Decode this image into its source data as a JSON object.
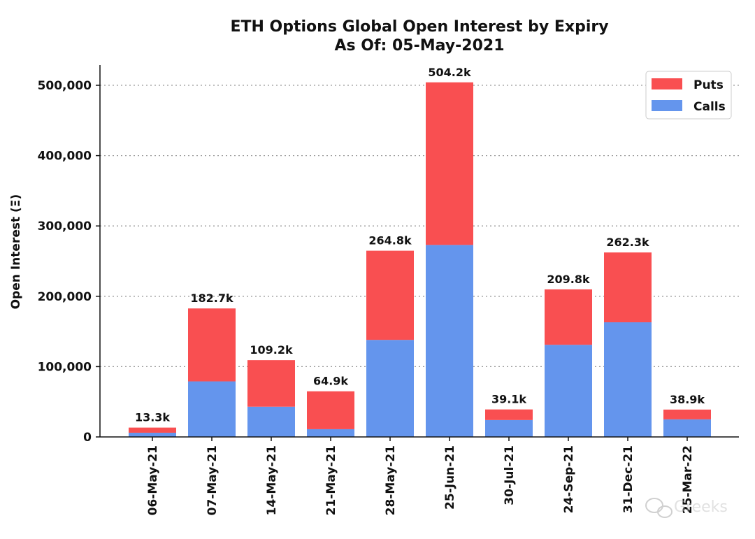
{
  "chart_data": {
    "type": "bar",
    "stacked": true,
    "title": "ETH Options Global Open Interest by Expiry",
    "subtitle": "As Of: 05-May-2021",
    "xlabel": "",
    "ylabel": "Open Interest (Ξ)",
    "ylim": [
      0,
      530000
    ],
    "yticks": [
      0,
      100000,
      200000,
      300000,
      400000,
      500000
    ],
    "ytick_labels": [
      "0",
      "100,000",
      "200,000",
      "300,000",
      "400,000",
      "500,000"
    ],
    "grid": "horizontal dotted",
    "legend_position": "top-right",
    "categories": [
      "06-May-21",
      "07-May-21",
      "14-May-21",
      "21-May-21",
      "28-May-21",
      "25-Jun-21",
      "30-Jul-21",
      "24-Sep-21",
      "31-Dec-21",
      "25-Mar-22"
    ],
    "series": [
      {
        "name": "Calls",
        "color": "#6495ED",
        "values": [
          6000,
          79000,
          43000,
          11000,
          138000,
          273000,
          24000,
          131000,
          163000,
          25000
        ]
      },
      {
        "name": "Puts",
        "color": "#F94F51",
        "values": [
          7300,
          103700,
          66200,
          53900,
          126800,
          231200,
          15100,
          78800,
          99300,
          13900
        ]
      }
    ],
    "totals_labels": [
      "13.3k",
      "182.7k",
      "109.2k",
      "64.9k",
      "264.8k",
      "504.2k",
      "39.1k",
      "209.8k",
      "262.3k",
      "38.9k"
    ]
  },
  "legend_order": [
    "Puts",
    "Calls"
  ],
  "watermark": {
    "text": "Greeks",
    "icon": "wechat-icon"
  }
}
